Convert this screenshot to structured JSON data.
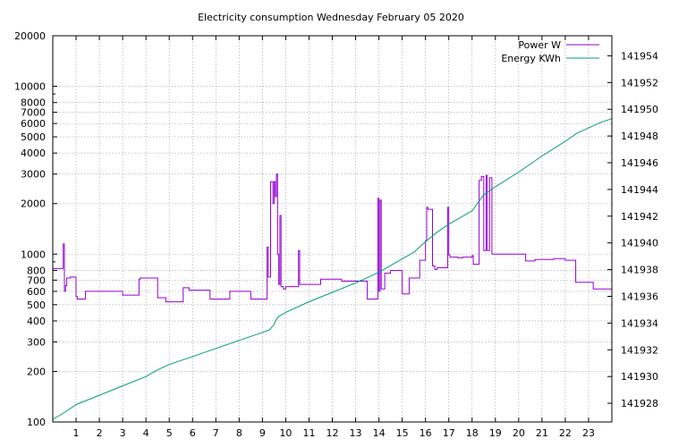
{
  "chart_data": {
    "type": "line",
    "title": "Electricity consumption Wednesday February 05 2020",
    "xlabel": "",
    "ylabel": "",
    "y2label": "",
    "grid": true,
    "legend_position": "top-right",
    "x_range": [
      0,
      24
    ],
    "x_ticks": [
      1,
      2,
      3,
      4,
      5,
      6,
      7,
      8,
      9,
      10,
      11,
      12,
      13,
      14,
      15,
      16,
      17,
      18,
      19,
      20,
      21,
      22,
      23
    ],
    "y_scale": "log",
    "y_range": [
      100,
      20000
    ],
    "y_ticks": [
      100,
      200,
      300,
      400,
      500,
      600,
      700,
      800,
      1000,
      2000,
      3000,
      4000,
      5000,
      6000,
      7000,
      8000,
      10000,
      20000
    ],
    "y2_range": [
      141926.6,
      141955.5
    ],
    "y2_ticks": [
      141928,
      141930,
      141932,
      141934,
      141936,
      141938,
      141940,
      141942,
      141944,
      141946,
      141948,
      141950,
      141952,
      141954
    ],
    "series": [
      {
        "name": "Power W",
        "axis": "y",
        "color": "#9400d3",
        "step": true,
        "x": [
          0,
          0.45,
          0.5,
          0.55,
          0.6,
          0.75,
          1.0,
          1.05,
          1.4,
          3.0,
          3.7,
          3.75,
          4.0,
          4.5,
          4.85,
          5.6,
          5.85,
          6.75,
          7.6,
          8.5,
          9.2,
          9.25,
          9.35,
          9.45,
          9.5,
          9.55,
          9.6,
          9.65,
          9.7,
          9.75,
          9.8,
          9.9,
          10.0,
          10.55,
          10.6,
          10.7,
          11.5,
          12.4,
          13.5,
          13.9,
          13.95,
          14.0,
          14.05,
          14.1,
          14.25,
          14.5,
          15.0,
          15.3,
          15.75,
          16.0,
          16.05,
          16.1,
          16.3,
          16.4,
          16.5,
          16.95,
          17.0,
          17.05,
          17.4,
          17.6,
          18.0,
          18.05,
          18.3,
          18.4,
          18.5,
          18.6,
          18.65,
          18.75,
          18.85,
          18.9,
          19.0,
          19.85,
          20.3,
          20.7,
          21.5,
          22.0,
          22.45,
          23.2,
          24.0
        ],
        "values": [
          820,
          1150,
          600,
          650,
          720,
          730,
          560,
          540,
          600,
          570,
          710,
          720,
          720,
          550,
          520,
          630,
          610,
          540,
          600,
          540,
          1100,
          730,
          2700,
          2000,
          2700,
          2200,
          3000,
          1000,
          660,
          1700,
          640,
          620,
          640,
          1050,
          660,
          660,
          710,
          690,
          540,
          540,
          2150,
          600,
          2100,
          620,
          770,
          800,
          580,
          720,
          920,
          1200,
          1900,
          1850,
          850,
          810,
          830,
          1900,
          990,
          960,
          950,
          960,
          980,
          870,
          2750,
          2900,
          1050,
          2950,
          1050,
          2850,
          1000,
          1000,
          1000,
          1000,
          910,
          930,
          940,
          920,
          680,
          620,
          620
        ]
      },
      {
        "name": "Energy KWh",
        "axis": "y2",
        "color": "#009e73",
        "step": false,
        "x": [
          0,
          0.5,
          1.0,
          2.0,
          3.0,
          4.0,
          4.5,
          5.0,
          6.0,
          7.0,
          8.0,
          9.0,
          9.3,
          9.5,
          9.6,
          9.7,
          9.8,
          10.0,
          11.0,
          12.0,
          13.0,
          13.5,
          14.0,
          14.5,
          15.0,
          15.5,
          16.0,
          16.5,
          17.0,
          17.5,
          18.0,
          18.5,
          19.0,
          20.0,
          21.0,
          22.0,
          22.5,
          23.0,
          23.5,
          24.0
        ],
        "values": [
          141926.8,
          141927.3,
          141927.9,
          141928.6,
          141929.3,
          141930.0,
          141930.5,
          141930.9,
          141931.5,
          141932.1,
          141932.7,
          141933.3,
          141933.5,
          141933.9,
          141934.3,
          141934.5,
          141934.6,
          141934.8,
          141935.6,
          141936.3,
          141937.0,
          141937.4,
          141937.8,
          141938.3,
          141938.8,
          141939.3,
          141940.1,
          141940.8,
          141941.4,
          141941.9,
          141942.4,
          141943.6,
          141944.2,
          141945.3,
          141946.5,
          141947.6,
          141948.2,
          141948.6,
          141949.0,
          141949.3
        ]
      }
    ]
  }
}
